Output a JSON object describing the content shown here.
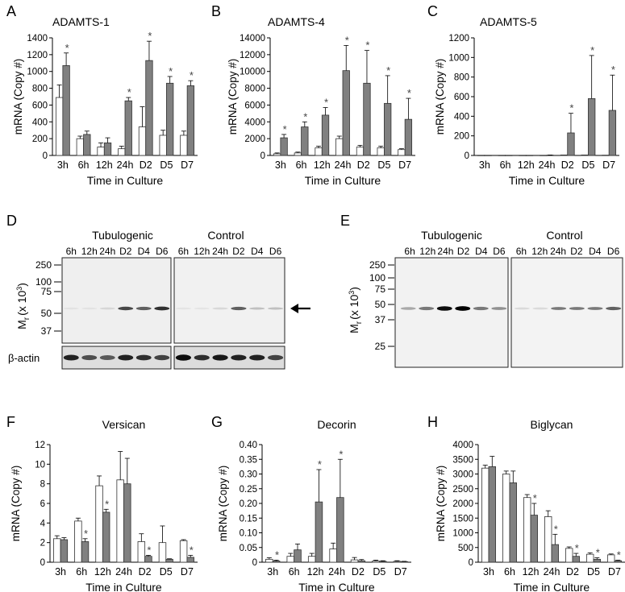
{
  "colors": {
    "tubulogenic": "#808080",
    "control": "#ffffff",
    "axis": "#000000",
    "error": "#000000"
  },
  "chart_data": [
    {
      "panel": "A",
      "type": "bar",
      "title": "ADAMTS-1",
      "xlabel": "Time in Culture",
      "ylabel": "mRNA (Copy #)",
      "ylim": [
        0,
        1400
      ],
      "yticks": [
        0,
        200,
        400,
        600,
        800,
        1000,
        1200,
        1400
      ],
      "categories": [
        "3h",
        "6h",
        "12h",
        "24h",
        "D2",
        "D5",
        "D7"
      ],
      "series": [
        {
          "values": [
            690,
            200,
            100,
            80,
            340,
            240,
            240
          ],
          "errors": [
            150,
            30,
            50,
            30,
            240,
            60,
            50
          ],
          "stars": [
            false,
            false,
            false,
            false,
            false,
            false,
            false
          ]
        },
        {
          "values": [
            1070,
            250,
            150,
            650,
            1130,
            860,
            830
          ],
          "errors": [
            150,
            40,
            60,
            40,
            230,
            80,
            60
          ],
          "stars": [
            true,
            false,
            false,
            true,
            true,
            true,
            true
          ]
        }
      ],
      "star_label": "*"
    },
    {
      "panel": "B",
      "type": "bar",
      "title": "ADAMTS-4",
      "xlabel": "Time in Culture",
      "ylabel": "mRNA (Copy #)",
      "ylim": [
        0,
        14000
      ],
      "yticks": [
        0,
        2000,
        4000,
        6000,
        8000,
        10000,
        12000,
        14000
      ],
      "categories": [
        "3h",
        "6h",
        "12h",
        "24h",
        "D2",
        "D5",
        "D7"
      ],
      "series": [
        {
          "values": [
            200,
            300,
            900,
            2000,
            1000,
            900,
            700
          ],
          "errors": [
            100,
            100,
            200,
            300,
            200,
            200,
            100
          ],
          "stars": [
            false,
            false,
            false,
            false,
            false,
            false,
            false
          ]
        },
        {
          "values": [
            2100,
            3400,
            4800,
            10100,
            8600,
            6200,
            4300
          ],
          "errors": [
            400,
            600,
            900,
            3000,
            3900,
            3300,
            2500
          ],
          "stars": [
            true,
            true,
            true,
            true,
            true,
            true,
            true
          ]
        }
      ],
      "star_label": "*"
    },
    {
      "panel": "C",
      "type": "bar",
      "title": "ADAMTS-5",
      "xlabel": "Time in Culture",
      "ylabel": "mRNA (Copy #)",
      "ylim": [
        0,
        1200
      ],
      "yticks": [
        0,
        200,
        400,
        600,
        800,
        1000,
        1200
      ],
      "categories": [
        "3h",
        "6h",
        "12h",
        "24h",
        "D2",
        "D5",
        "D7"
      ],
      "series": [
        {
          "values": [
            2,
            2,
            2,
            2,
            5,
            5,
            3
          ],
          "errors": [
            0,
            0,
            0,
            0,
            0,
            0,
            0
          ],
          "stars": [
            false,
            false,
            false,
            false,
            false,
            false,
            false
          ]
        },
        {
          "values": [
            2,
            2,
            2,
            3,
            230,
            580,
            460
          ],
          "errors": [
            0,
            0,
            0,
            2,
            200,
            440,
            360
          ],
          "stars": [
            false,
            false,
            false,
            false,
            true,
            true,
            true
          ]
        }
      ],
      "star_label": "*"
    },
    {
      "panel": "F",
      "type": "bar",
      "title": "Versican",
      "xlabel": "Time in Culture",
      "ylabel": "mRNA (Copy #)",
      "ylim": [
        0,
        12
      ],
      "yticks": [
        0,
        2,
        4,
        6,
        8,
        10,
        12
      ],
      "categories": [
        "3h",
        "6h",
        "12h",
        "24h",
        "D2",
        "D5",
        "D7"
      ],
      "series": [
        {
          "values": [
            2.4,
            4.2,
            7.8,
            8.4,
            2.1,
            2.0,
            2.2
          ],
          "errors": [
            0.3,
            0.3,
            1.0,
            2.9,
            0.8,
            1.7,
            0.1
          ],
          "stars": [
            false,
            false,
            false,
            false,
            false,
            false,
            false
          ]
        },
        {
          "values": [
            2.3,
            2.1,
            5.1,
            8.0,
            0.6,
            0.3,
            0.5
          ],
          "errors": [
            0.2,
            0.3,
            0.3,
            2.6,
            0.1,
            0.05,
            0.2
          ],
          "stars": [
            false,
            true,
            true,
            false,
            true,
            false,
            true
          ]
        }
      ],
      "star_label": "*"
    },
    {
      "panel": "G",
      "type": "bar",
      "title": "Decorin",
      "xlabel": "Time in Culture",
      "ylabel": "mRNA (Copy #)",
      "ylim": [
        0,
        0.4
      ],
      "yticks": [
        "0",
        "0.05",
        "0.10",
        "0.15",
        "0.20",
        "0.25",
        "0.30",
        "0.35",
        "0.40"
      ],
      "categories": [
        "3h",
        "6h",
        "12h",
        "24h",
        "D2",
        "D5",
        "D7"
      ],
      "series": [
        {
          "values": [
            0.01,
            0.02,
            0.02,
            0.045,
            0.008,
            0.004,
            0.003
          ],
          "errors": [
            0.005,
            0.01,
            0.01,
            0.02,
            0.008,
            0.003,
            0.002
          ],
          "stars": [
            false,
            false,
            false,
            false,
            false,
            false,
            false
          ]
        },
        {
          "values": [
            0.004,
            0.042,
            0.205,
            0.22,
            0.005,
            0.003,
            0.002
          ],
          "errors": [
            0.003,
            0.02,
            0.11,
            0.13,
            0.004,
            0.002,
            0.001
          ],
          "stars": [
            true,
            false,
            true,
            true,
            false,
            false,
            false
          ]
        }
      ],
      "star_label": "*"
    },
    {
      "panel": "H",
      "type": "bar",
      "title": "Biglycan",
      "xlabel": "Time in Culture",
      "ylabel": "mRNA (Copy #)",
      "ylim": [
        0,
        4000
      ],
      "yticks": [
        0,
        500,
        1000,
        1500,
        2000,
        2500,
        3000,
        3500,
        4000
      ],
      "categories": [
        "3h",
        "6h",
        "12h",
        "24h",
        "D2",
        "D5",
        "D7"
      ],
      "series": [
        {
          "values": [
            3200,
            3000,
            2200,
            1550,
            470,
            270,
            250
          ],
          "errors": [
            100,
            100,
            100,
            200,
            50,
            50,
            30
          ],
          "stars": [
            false,
            false,
            false,
            false,
            false,
            false,
            false
          ]
        },
        {
          "values": [
            3250,
            2700,
            1600,
            600,
            200,
            100,
            50
          ],
          "errors": [
            350,
            400,
            400,
            350,
            100,
            50,
            20
          ],
          "stars": [
            false,
            false,
            true,
            true,
            true,
            true,
            true
          ]
        }
      ],
      "star_label": "*"
    }
  ],
  "blots": {
    "D": {
      "panel": "D",
      "groups": [
        "Tubulogenic",
        "Control"
      ],
      "lanes": [
        "6h",
        "12h",
        "24h",
        "D2",
        "D4",
        "D6"
      ],
      "lane_units": [
        "h",
        "h",
        "h",
        "",
        "",
        ""
      ],
      "lane_base": [
        "6",
        "12",
        "24",
        "D2",
        "D4",
        "D6"
      ],
      "markers": [
        "250",
        "100",
        "75",
        "50",
        "37"
      ],
      "mr_label_main": "M",
      "mr_label_sub": "r",
      "mr_label_rest": "(x 10",
      "mr_label_sup": "3",
      "mr_label_close": ")",
      "actin_label": "β-actin",
      "band_intensity_tubulogenic": [
        0.05,
        0.05,
        0.1,
        0.7,
        0.6,
        0.8
      ],
      "band_intensity_control": [
        0.05,
        0.05,
        0.1,
        0.6,
        0.2,
        0.2
      ],
      "arrow_icon": "left-arrow-icon"
    },
    "E": {
      "panel": "E",
      "groups": [
        "Tubulogenic",
        "Control"
      ],
      "lanes": [
        "6h",
        "12h",
        "24h",
        "D2",
        "D4",
        "D6"
      ],
      "lane_base": [
        "6",
        "12",
        "24",
        "D2",
        "D4",
        "D6"
      ],
      "markers": [
        "250",
        "100",
        "75",
        "50",
        "37",
        "25"
      ],
      "mr_label_main": "M",
      "mr_label_sub": "r",
      "mr_label_rest": "(x 10",
      "mr_label_sup": "3",
      "mr_label_close": ")",
      "band_intensity_tubulogenic": [
        0.3,
        0.5,
        0.95,
        1.0,
        0.5,
        0.4
      ],
      "band_intensity_control": [
        0.1,
        0.1,
        0.5,
        0.5,
        0.5,
        0.6
      ]
    }
  }
}
